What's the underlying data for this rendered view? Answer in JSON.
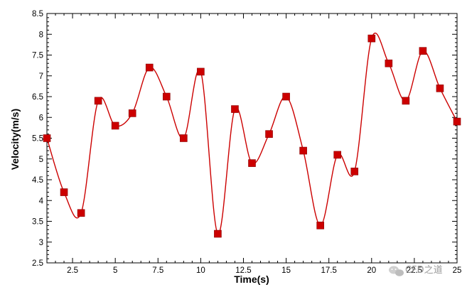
{
  "chart_data": {
    "type": "line",
    "title": "",
    "xlabel": "Time(s)",
    "ylabel": "Velocity(m/s)",
    "xlim": [
      1,
      25
    ],
    "ylim": [
      2.5,
      8.5
    ],
    "x_ticks": [
      2.5,
      5,
      7.5,
      10,
      12.5,
      15,
      17.5,
      20,
      22.5,
      25
    ],
    "x_tick_labels": [
      "2.5",
      "5",
      "7.5",
      "10",
      "12.5",
      "15",
      "17.5",
      "20",
      "22.5",
      "25"
    ],
    "y_ticks": [
      2.5,
      3,
      3.5,
      4,
      4.5,
      5,
      5.5,
      6,
      6.5,
      7,
      7.5,
      8,
      8.5
    ],
    "y_tick_labels": [
      "2.5",
      "3",
      "3.5",
      "4",
      "4.5",
      "5",
      "5.5",
      "6",
      "6.5",
      "7",
      "7.5",
      "8",
      "8.5"
    ],
    "grid": false,
    "legend": "none",
    "series": [
      {
        "x": [
          1,
          2,
          3,
          4,
          5,
          6,
          7,
          8,
          9,
          10,
          11,
          12,
          13,
          14,
          15,
          16,
          17,
          18,
          19,
          20,
          21,
          22,
          23,
          24,
          25
        ],
        "values": [
          5.5,
          4.2,
          3.7,
          6.4,
          5.8,
          6.1,
          7.2,
          6.5,
          5.5,
          7.1,
          3.2,
          6.2,
          4.9,
          5.6,
          6.5,
          5.2,
          3.4,
          5.1,
          4.7,
          7.9,
          7.3,
          6.4,
          7.6,
          6.7,
          5.9
        ],
        "color": "#cc0000",
        "marker": "square",
        "line": "smooth"
      }
    ]
  },
  "watermark": {
    "text": "CFD之道",
    "icon": "wechat-icon"
  }
}
